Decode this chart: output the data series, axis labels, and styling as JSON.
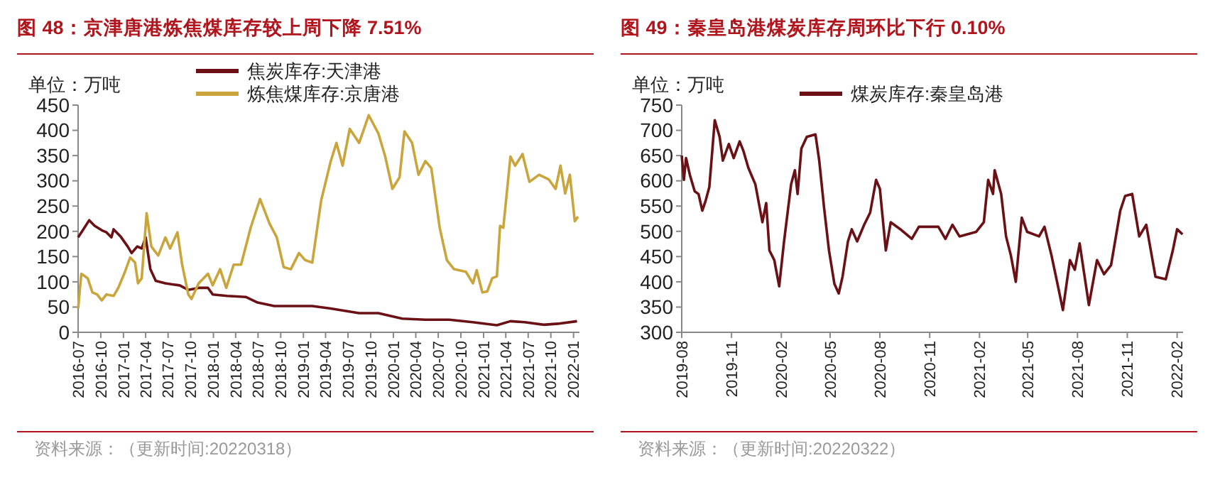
{
  "chart_data": [
    {
      "type": "line",
      "title": "图 48：京津唐港炼焦煤库存较上周下降 7.51%",
      "ylabel": "单位：万吨",
      "legend": "top",
      "annotations": [
        "资料来源：（更新时间:20220318）"
      ],
      "xlim": [
        "2016-07-01",
        "2022-01-25"
      ],
      "xticks": [
        "2016-07",
        "2016-10",
        "2017-01",
        "2017-04",
        "2017-07",
        "2017-10",
        "2018-01",
        "2018-04",
        "2018-07",
        "2018-10",
        "2019-01",
        "2019-04",
        "2019-07",
        "2019-10",
        "2020-01",
        "2020-04",
        "2020-07",
        "2020-10",
        "2021-01",
        "2021-04",
        "2021-07",
        "2021-10",
        "2022-01"
      ],
      "ylim": [
        0,
        450
      ],
      "yticks": [
        0,
        50,
        100,
        150,
        200,
        250,
        300,
        350,
        400,
        450
      ],
      "series": [
        {
          "name": "焦炭库存:天津港",
          "color": "#6b1014",
          "x": [
            "2016-07-01",
            "2016-07-20",
            "2016-08-15",
            "2016-09-06",
            "2016-10-05",
            "2016-10-24",
            "2016-11-13",
            "2016-11-22",
            "2016-12-20",
            "2017-01-18",
            "2017-02-03",
            "2017-02-26",
            "2017-03-16",
            "2017-04-01",
            "2017-04-20",
            "2017-05-12",
            "2017-06-20",
            "2017-07-18",
            "2017-08-17",
            "2017-09-21",
            "2017-11-02",
            "2017-12-10",
            "2017-12-29",
            "2018-02-26",
            "2018-05-12",
            "2018-06-29",
            "2018-09-05",
            "2018-11-20",
            "2019-02-06",
            "2019-04-22",
            "2019-08-15",
            "2019-11-01",
            "2020-02-06",
            "2020-05-10",
            "2020-08-15",
            "2020-11-18",
            "2021-02-24",
            "2021-04-20",
            "2021-06-17",
            "2021-09-02",
            "2021-10-29",
            "2022-01-15"
          ],
          "values": [
            188,
            202,
            222,
            211,
            202,
            198,
            188,
            204,
            190,
            170,
            157,
            170,
            166,
            188,
            125,
            102,
            97,
            95,
            93,
            84,
            88,
            88,
            75,
            72,
            70,
            59,
            52,
            52,
            52,
            47,
            38,
            38,
            27,
            25,
            25,
            20,
            14,
            22,
            20,
            15,
            17,
            22
          ]
        },
        {
          "name": "炼焦煤库存:京唐港",
          "color": "#c9a53c",
          "x": [
            "2016-07-01",
            "2016-07-14",
            "2016-08-09",
            "2016-08-28",
            "2016-09-16",
            "2016-10-05",
            "2016-10-24",
            "2016-11-22",
            "2016-12-11",
            "2017-01-04",
            "2017-01-28",
            "2017-02-17",
            "2017-03-01",
            "2017-03-16",
            "2017-04-05",
            "2017-04-24",
            "2017-05-22",
            "2017-06-20",
            "2017-07-09",
            "2017-08-08",
            "2017-08-27",
            "2017-09-21",
            "2017-10-04",
            "2017-11-02",
            "2017-12-10",
            "2017-12-29",
            "2018-01-28",
            "2018-02-22",
            "2018-03-24",
            "2018-04-23",
            "2018-06-01",
            "2018-07-09",
            "2018-08-16",
            "2018-09-15",
            "2018-10-13",
            "2018-11-11",
            "2018-12-14",
            "2019-01-08",
            "2019-02-06",
            "2019-03-14",
            "2019-04-22",
            "2019-05-15",
            "2019-06-09",
            "2019-07-08",
            "2019-08-15",
            "2019-09-23",
            "2019-11-01",
            "2019-11-29",
            "2019-12-28",
            "2020-01-26",
            "2020-02-15",
            "2020-03-17",
            "2020-04-12",
            "2020-05-10",
            "2020-06-03",
            "2020-07-07",
            "2020-08-05",
            "2020-09-03",
            "2020-10-21",
            "2020-11-19",
            "2020-12-04",
            "2020-12-27",
            "2021-01-16",
            "2021-02-05",
            "2021-02-24",
            "2021-03-09",
            "2021-03-22",
            "2021-04-20",
            "2021-05-09",
            "2021-06-08",
            "2021-07-06",
            "2021-08-14",
            "2021-09-22",
            "2021-10-20",
            "2021-11-09",
            "2021-11-28",
            "2021-12-17",
            "2022-01-06",
            "2022-01-19"
          ],
          "values": [
            47,
            116,
            107,
            79,
            75,
            63,
            75,
            72,
            88,
            116,
            148,
            138,
            97,
            107,
            236,
            170,
            152,
            188,
            166,
            198,
            134,
            75,
            66,
            97,
            116,
            93,
            125,
            88,
            134,
            134,
            207,
            264,
            216,
            188,
            129,
            125,
            157,
            143,
            138,
            261,
            339,
            375,
            330,
            403,
            375,
            430,
            394,
            348,
            284,
            307,
            398,
            375,
            312,
            339,
            325,
            207,
            143,
            125,
            120,
            97,
            123,
            79,
            81,
            107,
            111,
            211,
            207,
            348,
            330,
            353,
            298,
            312,
            303,
            284,
            330,
            275,
            312,
            220,
            229
          ]
        }
      ]
    },
    {
      "type": "line",
      "title": "图 49：秦皇岛港煤炭库存周环比下行 0.10%",
      "ylabel": "单位：万吨",
      "legend": "top",
      "annotations": [
        "资料来源：（更新时间:20220322）"
      ],
      "xlim": [
        "2019-08-01",
        "2022-02-12"
      ],
      "xticks": [
        "2019-08",
        "2019-11",
        "2020-02",
        "2020-05",
        "2020-08",
        "2020-11",
        "2021-02",
        "2021-05",
        "2021-08",
        "2021-11",
        "2022-02"
      ],
      "ylim": [
        300,
        750
      ],
      "yticks": [
        300,
        350,
        400,
        450,
        500,
        550,
        600,
        650,
        700,
        750
      ],
      "series": [
        {
          "name": "煤炭库存:秦皇岛港",
          "color": "#6b1014",
          "x": [
            "2019-08-01",
            "2019-08-05",
            "2019-08-09",
            "2019-08-16",
            "2019-08-25",
            "2019-09-01",
            "2019-09-08",
            "2019-09-14",
            "2019-09-21",
            "2019-10-01",
            "2019-10-10",
            "2019-10-16",
            "2019-10-27",
            "2019-11-05",
            "2019-11-16",
            "2019-11-23",
            "2019-12-02",
            "2019-12-15",
            "2019-12-28",
            "2020-01-04",
            "2020-01-10",
            "2020-01-19",
            "2020-01-28",
            "2020-02-06",
            "2020-02-19",
            "2020-02-26",
            "2020-03-02",
            "2020-03-09",
            "2020-03-19",
            "2020-04-04",
            "2020-04-11",
            "2020-04-20",
            "2020-04-29",
            "2020-05-09",
            "2020-05-17",
            "2020-05-24",
            "2020-06-03",
            "2020-06-10",
            "2020-06-20",
            "2020-07-03",
            "2020-07-14",
            "2020-07-25",
            "2020-08-01",
            "2020-08-12",
            "2020-08-21",
            "2020-09-08",
            "2020-09-29",
            "2020-10-12",
            "2020-11-17",
            "2020-11-30",
            "2020-12-13",
            "2020-12-26",
            "2021-01-26",
            "2021-02-09",
            "2021-02-17",
            "2021-02-26",
            "2021-03-01",
            "2021-03-13",
            "2021-03-22",
            "2021-03-31",
            "2021-04-09",
            "2021-04-20",
            "2021-04-30",
            "2021-05-22",
            "2021-06-01",
            "2021-06-14",
            "2021-06-27",
            "2021-07-05",
            "2021-07-18",
            "2021-07-27",
            "2021-08-05",
            "2021-08-22",
            "2021-09-06",
            "2021-09-19",
            "2021-10-02",
            "2021-10-19",
            "2021-10-28",
            "2021-11-10",
            "2021-11-23",
            "2021-12-06",
            "2021-12-23",
            "2022-01-11",
            "2022-01-24",
            "2022-02-01",
            "2022-02-11"
          ],
          "values": [
            650,
            602,
            645,
            612,
            579,
            574,
            541,
            560,
            588,
            720,
            687,
            640,
            673,
            645,
            678,
            659,
            626,
            593,
            518,
            556,
            462,
            443,
            391,
            480,
            593,
            621,
            574,
            664,
            687,
            692,
            640,
            546,
            462,
            396,
            377,
            410,
            480,
            504,
            480,
            513,
            537,
            602,
            584,
            462,
            518,
            504,
            485,
            509,
            509,
            485,
            513,
            490,
            499,
            518,
            602,
            574,
            621,
            574,
            490,
            452,
            400,
            527,
            499,
            490,
            509,
            452,
            386,
            344,
            443,
            424,
            476,
            354,
            443,
            415,
            433,
            541,
            570,
            574,
            490,
            513,
            410,
            405,
            462,
            504,
            494
          ]
        }
      ]
    }
  ]
}
